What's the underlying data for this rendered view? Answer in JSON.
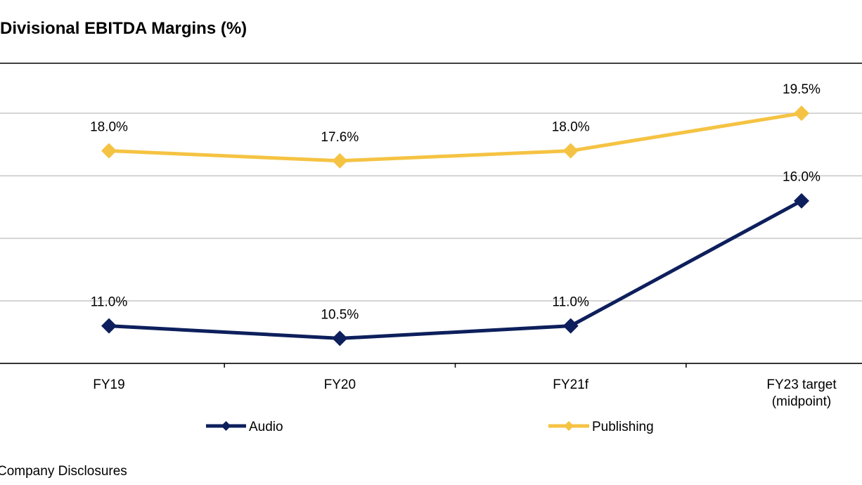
{
  "chart_data": {
    "type": "line",
    "title": "Divisional EBITDA Margins (%)",
    "categories": [
      "FY19",
      "FY20",
      "FY21f",
      "FY23 target (midpoint)"
    ],
    "category_lines": [
      [
        "FY19"
      ],
      [
        "FY20"
      ],
      [
        "FY21f"
      ],
      [
        "FY23 target",
        "(midpoint)"
      ]
    ],
    "series": [
      {
        "name": "Audio",
        "values": [
          11.0,
          10.5,
          11.0,
          16.0
        ],
        "labels": [
          "11.0%",
          "10.5%",
          "11.0%",
          "16.0%"
        ],
        "color": "#0d1f5c"
      },
      {
        "name": "Publishing",
        "values": [
          18.0,
          17.6,
          18.0,
          19.5
        ],
        "labels": [
          "18.0%",
          "17.6%",
          "18.0%",
          "19.5%"
        ],
        "color": "#f5c343"
      }
    ],
    "ylim": [
      9.5,
      21.5
    ],
    "gridlines": [
      9.5,
      12.0,
      14.5,
      17.0,
      19.5
    ],
    "grid": true,
    "legend_position": "bottom",
    "source": "Company Disclosures"
  }
}
